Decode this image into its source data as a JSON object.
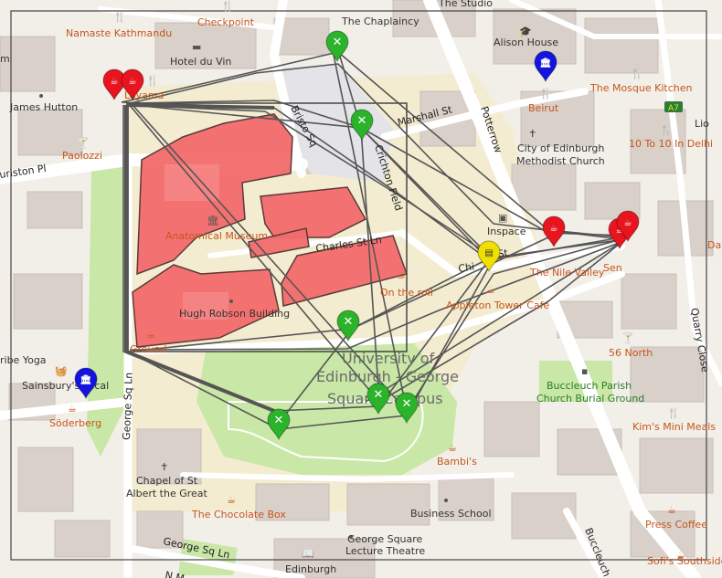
{
  "map": {
    "streets": [
      {
        "id": "lauriston",
        "label": "uriston Pl"
      },
      {
        "id": "potterrow",
        "label": "Potterrow"
      },
      {
        "id": "marshall",
        "label": "Marshall St"
      },
      {
        "id": "charles",
        "label": "Charles St Ln"
      },
      {
        "id": "chapel",
        "label": "Chapel St"
      },
      {
        "id": "george-ln-v",
        "label": "George Sq Ln"
      },
      {
        "id": "george-ln-h",
        "label": "George Sq Ln"
      },
      {
        "id": "quarry",
        "label": "Quarry Close"
      },
      {
        "id": "buccleuch",
        "label": "Buccleuch P"
      },
      {
        "id": "bristo",
        "label": "Bristo Sq"
      },
      {
        "id": "crichton",
        "label": "Chi"
      },
      {
        "id": "nm",
        "label": "N M"
      }
    ],
    "places": [
      {
        "id": "namaste",
        "label": "Namaste Kathmandu",
        "kind": "amenity"
      },
      {
        "id": "checkpoint",
        "label": "Checkpoint",
        "kind": "amenity"
      },
      {
        "id": "chaplaincy",
        "label": "The Chaplaincy",
        "kind": "poi"
      },
      {
        "id": "studio",
        "label": "The Studio",
        "kind": "poi"
      },
      {
        "id": "hotel",
        "label": "Hotel du Vin",
        "kind": "poi"
      },
      {
        "id": "alison",
        "label": "Alison House",
        "kind": "poi"
      },
      {
        "id": "james",
        "label": "James Hutton",
        "kind": "poi"
      },
      {
        "id": "mosque",
        "label": "The Mosque Kitchen",
        "kind": "amenity"
      },
      {
        "id": "beirut",
        "label": "Beirut",
        "kind": "amenity"
      },
      {
        "id": "a7",
        "label": "A7",
        "kind": "road"
      },
      {
        "id": "lio",
        "label": "Lio",
        "kind": "amenity"
      },
      {
        "id": "paolozzi",
        "label": "Paolozzi",
        "kind": "amenity"
      },
      {
        "id": "cityed1",
        "label": "City of Edinburgh",
        "kind": "poi"
      },
      {
        "id": "cityed2",
        "label": "Methodist Church",
        "kind": "poi"
      },
      {
        "id": "tenten",
        "label": "10 To 10 In Delhi",
        "kind": "amenity"
      },
      {
        "id": "anatomical",
        "label": "Anatomical Museum",
        "kind": "amenity"
      },
      {
        "id": "inspace",
        "label": "Inspace",
        "kind": "poi"
      },
      {
        "id": "nile",
        "label": "The Nile Valley",
        "kind": "amenity"
      },
      {
        "id": "sen",
        "label": "Sen",
        "kind": "amenity"
      },
      {
        "id": "dar",
        "label": "Dar",
        "kind": "amenity"
      },
      {
        "id": "ontheroll",
        "label": "On the roll",
        "kind": "amenity"
      },
      {
        "id": "appleton",
        "label": "Appleton Tower Cafe",
        "kind": "amenity"
      },
      {
        "id": "hughrobson",
        "label": "Hugh Robson Building",
        "kind": "poi"
      },
      {
        "id": "ground",
        "label": "Ground",
        "kind": "amenity"
      },
      {
        "id": "fiftysix",
        "label": "56 North",
        "kind": "amenity"
      },
      {
        "id": "yoga",
        "label": "ribe Yoga",
        "kind": "poi"
      },
      {
        "id": "sainsbury",
        "label": "Sainsbury's Local",
        "kind": "poi"
      },
      {
        "id": "uni1",
        "label": "University of",
        "kind": "area"
      },
      {
        "id": "uni2",
        "label": "Edinburgh - George",
        "kind": "area"
      },
      {
        "id": "uni3",
        "label": "Square Campus",
        "kind": "area"
      },
      {
        "id": "buccleuch1",
        "label": "Buccleuch Parish",
        "kind": "green"
      },
      {
        "id": "buccleuch2",
        "label": "Church Burial Ground",
        "kind": "green"
      },
      {
        "id": "soderberg",
        "label": "Söderberg",
        "kind": "amenity"
      },
      {
        "id": "kims",
        "label": "Kim's Mini Meals",
        "kind": "amenity"
      },
      {
        "id": "bambis",
        "label": "Bambi's",
        "kind": "amenity"
      },
      {
        "id": "chapelst1",
        "label": "Chapel of St",
        "kind": "poi"
      },
      {
        "id": "chapelst2",
        "label": "Albert the Great",
        "kind": "poi"
      },
      {
        "id": "business",
        "label": "Business School",
        "kind": "poi"
      },
      {
        "id": "chocolate",
        "label": "The Chocolate Box",
        "kind": "amenity"
      },
      {
        "id": "press",
        "label": "Press Coffee",
        "kind": "amenity"
      },
      {
        "id": "lecture1",
        "label": "George Square",
        "kind": "poi"
      },
      {
        "id": "lecture2",
        "label": "Lecture Theatre",
        "kind": "poi"
      },
      {
        "id": "sofis",
        "label": "Sofi's Southside",
        "kind": "amenity"
      },
      {
        "id": "edinburgh",
        "label": "Edinburgh",
        "kind": "poi"
      },
      {
        "id": "m",
        "label": "m",
        "kind": "poi"
      },
      {
        "id": "lago",
        "label": "Loyama",
        "kind": "amenity"
      }
    ],
    "markers": [
      {
        "id": "m-red-1",
        "color": "#e8141e",
        "icon": "cup-icon"
      },
      {
        "id": "m-red-2",
        "color": "#e8141e",
        "icon": "cup-icon"
      },
      {
        "id": "m-green-1",
        "color": "#2bb32b",
        "icon": "cross-icon"
      },
      {
        "id": "m-green-2",
        "color": "#2bb32b",
        "icon": "cross-icon"
      },
      {
        "id": "m-blue-1",
        "color": "#1414e0",
        "icon": "museum-icon"
      },
      {
        "id": "m-red-3",
        "color": "#e8141e",
        "icon": "cup-icon"
      },
      {
        "id": "m-red-4",
        "color": "#e8141e",
        "icon": "cup-icon"
      },
      {
        "id": "m-red-5",
        "color": "#e8141e",
        "icon": "cup-icon"
      },
      {
        "id": "m-yellow-1",
        "color": "#f0e000",
        "icon": "building-icon"
      },
      {
        "id": "m-green-3",
        "color": "#2bb32b",
        "icon": "cross-icon"
      },
      {
        "id": "m-green-4",
        "color": "#2bb32b",
        "icon": "cross-icon"
      },
      {
        "id": "m-green-5",
        "color": "#2bb32b",
        "icon": "cross-icon"
      },
      {
        "id": "m-green-6",
        "color": "#2bb32b",
        "icon": "cross-icon"
      },
      {
        "id": "m-blue-2",
        "color": "#1414e0",
        "icon": "museum-icon"
      }
    ],
    "colors": {
      "background": "#f2efe9",
      "building": "#d9d0c9",
      "campus": "#f0e8c8",
      "park": "#c8e6a0",
      "highlight_building": "#f26b6b",
      "route_line": "#555555",
      "amenity_label": "#c6561c"
    }
  }
}
